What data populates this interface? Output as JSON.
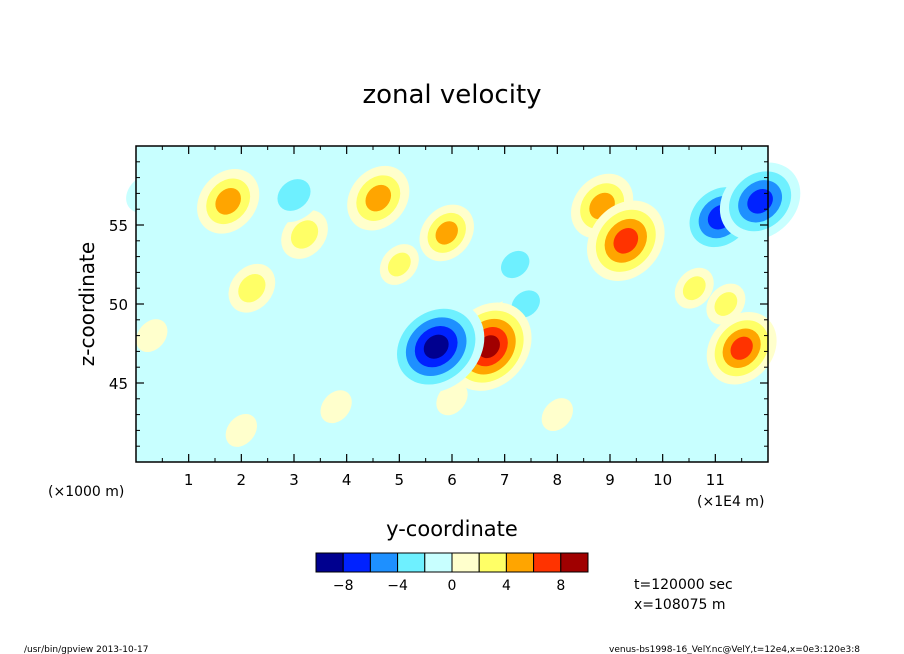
{
  "chart_data": {
    "type": "heatmap",
    "title": "zonal velocity",
    "xlabel": "y-coordinate",
    "ylabel": "z-coordinate",
    "x_unit_left": "(×1000 m)",
    "x_unit_right": "(×1E4 m)",
    "x_ticks": [
      "1",
      "2",
      "3",
      "4",
      "5",
      "6",
      "7",
      "8",
      "9",
      "10",
      "11"
    ],
    "y_ticks": [
      "45",
      "50",
      "55"
    ],
    "xlim": [
      0,
      12
    ],
    "ylim": [
      40,
      60
    ],
    "colorbar": {
      "levels": [
        -10,
        -8,
        -6,
        -4,
        -2,
        0,
        2,
        4,
        6,
        8,
        10
      ],
      "tick_labels": [
        "−8",
        "−4",
        "0",
        "4",
        "8"
      ],
      "colors": [
        "#00008f",
        "#0022ff",
        "#1e90ff",
        "#6ef0ff",
        "#c8ffff",
        "#ffffcc",
        "#ffff66",
        "#ffa500",
        "#ff3300",
        "#a00000"
      ]
    },
    "features": [
      {
        "x": 5.7,
        "z": 47.3,
        "amp": -9
      },
      {
        "x": 6.7,
        "z": 47.3,
        "amp": 8
      },
      {
        "x": 9.3,
        "z": 54.0,
        "amp": 7
      },
      {
        "x": 11.5,
        "z": 47.2,
        "amp": 6
      },
      {
        "x": 11.1,
        "z": 55.5,
        "amp": -7
      },
      {
        "x": 11.85,
        "z": 56.5,
        "amp": -7
      },
      {
        "x": 1.75,
        "z": 56.5,
        "amp": 5
      },
      {
        "x": 4.6,
        "z": 56.7,
        "amp": 5
      },
      {
        "x": 8.85,
        "z": 56.2,
        "amp": 5
      },
      {
        "x": 5.9,
        "z": 54.5,
        "amp": 4
      },
      {
        "x": 2.2,
        "z": 51.0,
        "amp": 3
      },
      {
        "x": 3.2,
        "z": 54.4,
        "amp": 3
      },
      {
        "x": 3.0,
        "z": 56.9,
        "amp": -4
      },
      {
        "x": 7.0,
        "z": 48.7,
        "amp": 3
      },
      {
        "x": 7.2,
        "z": 52.5,
        "amp": -3
      },
      {
        "x": 7.4,
        "z": 50.0,
        "amp": -3
      },
      {
        "x": 7.5,
        "z": 49.2,
        "amp": -2
      },
      {
        "x": 4.2,
        "z": 49.5,
        "amp": -2
      },
      {
        "x": 10.2,
        "z": 47.0,
        "amp": -2
      },
      {
        "x": 10.6,
        "z": 51.0,
        "amp": 2
      },
      {
        "x": 11.2,
        "z": 50.0,
        "amp": 2
      },
      {
        "x": 2.0,
        "z": 42.0,
        "amp": 1
      },
      {
        "x": 8.0,
        "z": 43.0,
        "amp": 1
      },
      {
        "x": 0.3,
        "z": 48.0,
        "amp": 1
      },
      {
        "x": 3.8,
        "z": 43.5,
        "amp": 1
      },
      {
        "x": 6.0,
        "z": 44.0,
        "amp": 1
      },
      {
        "x": 0.2,
        "z": 57.0,
        "amp": -2
      },
      {
        "x": 2.7,
        "z": 47.5,
        "amp": -1.5
      },
      {
        "x": 9.8,
        "z": 49.0,
        "amp": -1.5
      },
      {
        "x": 5.0,
        "z": 52.5,
        "amp": 2
      }
    ]
  },
  "annotations": {
    "time": "t=120000 sec",
    "position": "x=108075 m"
  },
  "footer": {
    "left": "/usr/bin/gpview  2013-10-17",
    "right": "venus-bs1998-16_VelY.nc@VelY,t=12e4,x=0e3:120e3:8"
  }
}
